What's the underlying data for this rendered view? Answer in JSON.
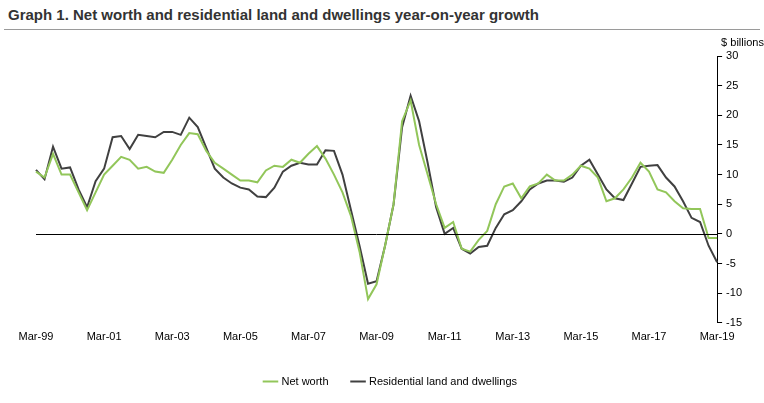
{
  "chart_data": {
    "type": "line",
    "title": "Graph 1. Net worth and residential land and dwellings year-on-year growth",
    "ylabel": "$ billions",
    "categories": [
      "Mar-99",
      null,
      null,
      null,
      null,
      null,
      null,
      null,
      "Mar-01",
      null,
      null,
      null,
      null,
      null,
      null,
      null,
      "Mar-03",
      null,
      null,
      null,
      null,
      null,
      null,
      null,
      "Mar-05",
      null,
      null,
      null,
      null,
      null,
      null,
      null,
      "Mar-07",
      null,
      null,
      null,
      null,
      null,
      null,
      null,
      "Mar-09",
      null,
      null,
      null,
      null,
      null,
      null,
      null,
      "Mar-11",
      null,
      null,
      null,
      null,
      null,
      null,
      null,
      "Mar-13",
      null,
      null,
      null,
      null,
      null,
      null,
      null,
      "Mar-15",
      null,
      null,
      null,
      null,
      null,
      null,
      null,
      "Mar-17",
      null,
      null,
      null,
      null,
      null,
      null,
      null,
      "Mar-19"
    ],
    "series": [
      {
        "name": "Net worth",
        "color": "#92c65a",
        "values": [
          10.5,
          9.5,
          13.5,
          10,
          10,
          7,
          4,
          7,
          10,
          11.5,
          13,
          12.5,
          11,
          11.3,
          10.5,
          10.3,
          12.5,
          15,
          17,
          16.8,
          14,
          12,
          11,
          10,
          9,
          9,
          8.7,
          10.7,
          11.5,
          11.3,
          12.5,
          12,
          13.5,
          14.8,
          12.7,
          10,
          7,
          3,
          -3,
          -11,
          -8.5,
          -2,
          5,
          19,
          22.5,
          15,
          10,
          5,
          1,
          2,
          -2.5,
          -3,
          -1,
          0.5,
          5,
          8,
          8.5,
          6,
          8,
          8.5,
          10,
          9,
          9,
          10,
          11.5,
          11,
          9.5,
          5.5,
          6,
          7.5,
          9.5,
          12,
          10.5,
          7.5,
          7,
          5.5,
          4.3,
          4.2,
          4.2,
          -0.7,
          -0.7
        ]
      },
      {
        "name": "Residential land and dwellings",
        "color": "#404040",
        "values": [
          10.8,
          9.2,
          14.7,
          11,
          11.2,
          7.5,
          4.5,
          8.9,
          11,
          16.3,
          16.5,
          14.3,
          16.7,
          16.5,
          16.3,
          17.2,
          17.2,
          16.7,
          19.6,
          18,
          14.5,
          11,
          9.5,
          8.5,
          7.8,
          7.5,
          6.3,
          6.2,
          7.8,
          10.5,
          11.5,
          12,
          11.7,
          11.7,
          14.1,
          14,
          10,
          4,
          -2,
          -8.4,
          -8,
          -2,
          5,
          18,
          23.3,
          19,
          12,
          4.5,
          0,
          1,
          -2.5,
          -3.3,
          -2.2,
          -2,
          1,
          3.3,
          4,
          5.5,
          7.5,
          8.5,
          9,
          9,
          8.8,
          9.5,
          11.5,
          12.5,
          10,
          7.5,
          6,
          5.7,
          8.5,
          11.3,
          11.5,
          11.6,
          9.5,
          8,
          5.5,
          2.7,
          2,
          -2,
          -4.8
        ]
      }
    ],
    "ylim": [
      -15,
      30
    ],
    "yticks": [
      -15,
      -10,
      -5,
      0,
      5,
      10,
      15,
      20,
      25,
      30
    ],
    "grid": false,
    "legend": "bottom"
  }
}
